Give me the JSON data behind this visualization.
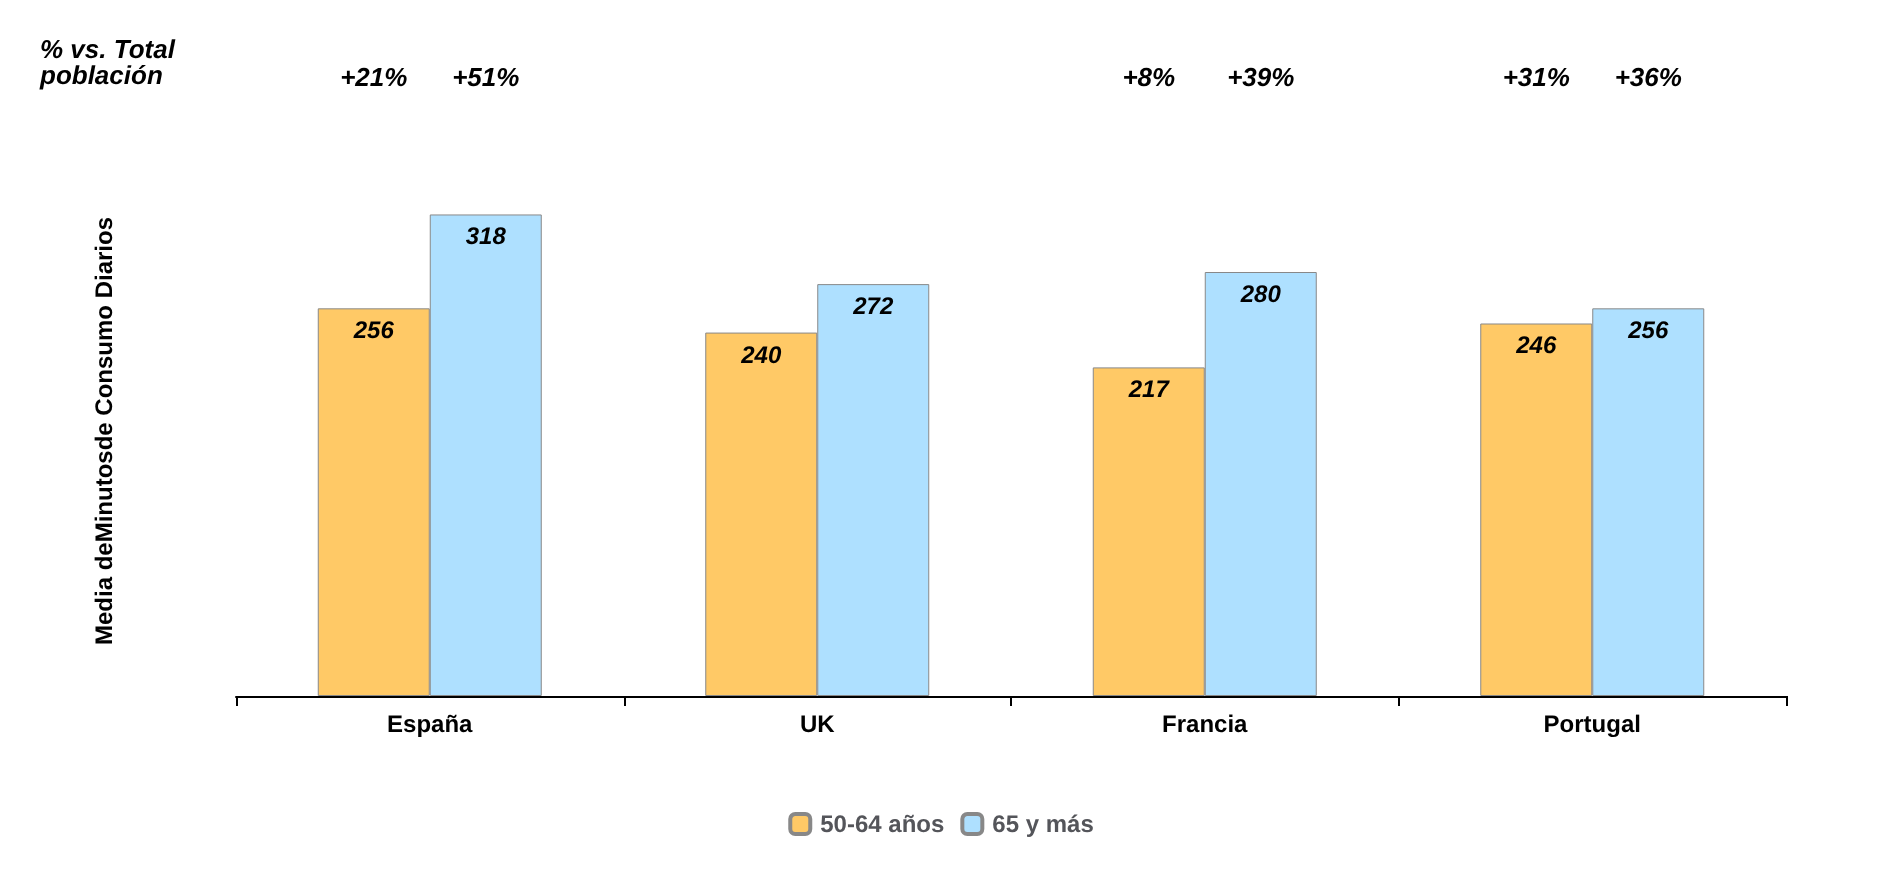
{
  "chart_data": {
    "type": "bar",
    "ylabel": "Media deMinutosde Consumo Diarios",
    "categories": [
      "España",
      "UK",
      "Francia",
      "Portugal"
    ],
    "series": [
      {
        "name": "50-64 años",
        "color": "#ffc966",
        "values": [
          256,
          240,
          217,
          246
        ]
      },
      {
        "name": "65 y más",
        "color": "#aee0ff",
        "values": [
          318,
          272,
          280,
          256
        ]
      }
    ],
    "data_labels": true,
    "legend": "bottom",
    "grid": false,
    "annotations": [
      "% vs. Total población",
      "+21%",
      "+51%",
      "+8%",
      "+39%",
      "+31%",
      "+36%"
    ]
  }
}
